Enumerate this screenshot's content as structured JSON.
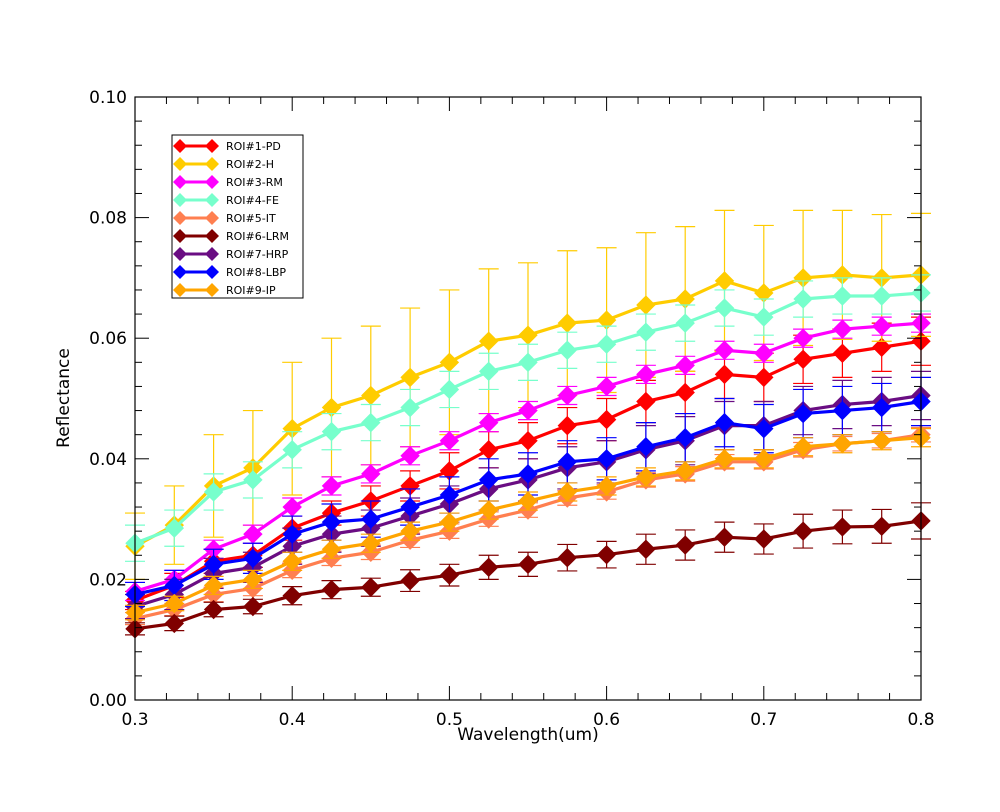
{
  "chart_data": {
    "type": "line",
    "title": "",
    "xlabel": "Wavelength(um)",
    "ylabel": "Reflectance",
    "xlim": [
      0.3,
      0.8
    ],
    "ylim": [
      0.0,
      0.1
    ],
    "x_ticks": [
      "0.3",
      "0.4",
      "0.5",
      "0.6",
      "0.7",
      "0.8"
    ],
    "y_ticks": [
      "0.00",
      "0.02",
      "0.04",
      "0.06",
      "0.08",
      "0.10"
    ],
    "grid": false,
    "legend_position": "top-left",
    "x": [
      0.3,
      0.325,
      0.35,
      0.375,
      0.4,
      0.425,
      0.45,
      0.475,
      0.5,
      0.525,
      0.55,
      0.575,
      0.6,
      0.625,
      0.65,
      0.675,
      0.7,
      0.725,
      0.75,
      0.775,
      0.8
    ],
    "series": [
      {
        "name": "ROI#1-PD",
        "color": "#ff0000",
        "values": [
          0.0165,
          0.019,
          0.023,
          0.024,
          0.0285,
          0.031,
          0.033,
          0.0355,
          0.038,
          0.0415,
          0.043,
          0.0455,
          0.0465,
          0.0495,
          0.051,
          0.054,
          0.0535,
          0.0565,
          0.0575,
          0.0585,
          0.0595
        ],
        "errors": [
          0.0015,
          0.002,
          0.002,
          0.002,
          0.002,
          0.002,
          0.0025,
          0.0025,
          0.003,
          0.003,
          0.003,
          0.003,
          0.0035,
          0.0035,
          0.0035,
          0.004,
          0.004,
          0.004,
          0.004,
          0.004,
          0.004
        ]
      },
      {
        "name": "ROI#2-H",
        "color": "#ffcc00",
        "values": [
          0.0255,
          0.029,
          0.0355,
          0.0385,
          0.045,
          0.0485,
          0.0505,
          0.0535,
          0.056,
          0.0595,
          0.0605,
          0.0625,
          0.063,
          0.0655,
          0.0665,
          0.0695,
          0.0675,
          0.07,
          0.0705,
          0.07,
          0.0705
        ],
        "errors": [
          0.0055,
          0.0065,
          0.0085,
          0.0095,
          0.011,
          0.0115,
          0.0115,
          0.0115,
          0.012,
          0.012,
          0.012,
          0.012,
          0.012,
          0.012,
          0.012,
          0.0117,
          0.0112,
          0.0112,
          0.0107,
          0.0105,
          0.0102
        ]
      },
      {
        "name": "ROI#3-RM",
        "color": "#ff00ff",
        "values": [
          0.018,
          0.02,
          0.025,
          0.0275,
          0.032,
          0.0355,
          0.0375,
          0.0405,
          0.043,
          0.046,
          0.048,
          0.0505,
          0.052,
          0.054,
          0.0555,
          0.058,
          0.0575,
          0.06,
          0.0615,
          0.062,
          0.0625
        ],
        "errors": [
          0.0015,
          0.0015,
          0.0015,
          0.0015,
          0.0015,
          0.0015,
          0.0015,
          0.0015,
          0.0015,
          0.0015,
          0.0015,
          0.0015,
          0.0015,
          0.0015,
          0.0015,
          0.0015,
          0.0015,
          0.0015,
          0.0015,
          0.0015,
          0.0015
        ]
      },
      {
        "name": "ROI#4-FE",
        "color": "#77ffcc",
        "values": [
          0.026,
          0.0285,
          0.0345,
          0.0365,
          0.0415,
          0.0445,
          0.046,
          0.0485,
          0.0515,
          0.0545,
          0.056,
          0.058,
          0.059,
          0.061,
          0.0625,
          0.065,
          0.0635,
          0.0665,
          0.067,
          0.067,
          0.0675
        ],
        "errors": [
          0.003,
          0.003,
          0.003,
          0.003,
          0.003,
          0.003,
          0.003,
          0.003,
          0.003,
          0.003,
          0.003,
          0.003,
          0.003,
          0.003,
          0.003,
          0.003,
          0.003,
          0.003,
          0.003,
          0.003,
          0.003
        ]
      },
      {
        "name": "ROI#5-IT",
        "color": "#ff7f50",
        "values": [
          0.0135,
          0.015,
          0.0175,
          0.0185,
          0.0215,
          0.0235,
          0.0245,
          0.0265,
          0.028,
          0.03,
          0.0315,
          0.0335,
          0.0345,
          0.0365,
          0.0375,
          0.0395,
          0.0395,
          0.0415,
          0.0425,
          0.043,
          0.044
        ],
        "errors": [
          0.001,
          0.001,
          0.0012,
          0.0012,
          0.0012,
          0.0012,
          0.0012,
          0.0012,
          0.0012,
          0.0012,
          0.0012,
          0.0012,
          0.0012,
          0.0012,
          0.0012,
          0.0012,
          0.0012,
          0.0012,
          0.0012,
          0.0012,
          0.0012
        ]
      },
      {
        "name": "ROI#6-LRM",
        "color": "#800000",
        "values": [
          0.0118,
          0.0127,
          0.015,
          0.0155,
          0.0173,
          0.0183,
          0.0187,
          0.0198,
          0.0207,
          0.022,
          0.0225,
          0.0236,
          0.0241,
          0.025,
          0.0257,
          0.027,
          0.0267,
          0.028,
          0.0287,
          0.0288,
          0.0297
        ],
        "errors": [
          0.001,
          0.0012,
          0.0012,
          0.0012,
          0.0015,
          0.0015,
          0.0015,
          0.0018,
          0.0018,
          0.002,
          0.002,
          0.0022,
          0.0022,
          0.0025,
          0.0025,
          0.0025,
          0.0025,
          0.0028,
          0.0028,
          0.0028,
          0.003
        ]
      },
      {
        "name": "ROI#7-HRP",
        "color": "#6a0d83",
        "values": [
          0.0155,
          0.0175,
          0.021,
          0.022,
          0.0255,
          0.0275,
          0.0285,
          0.0305,
          0.0325,
          0.035,
          0.0365,
          0.0385,
          0.0395,
          0.0415,
          0.043,
          0.0455,
          0.0455,
          0.048,
          0.049,
          0.0495,
          0.0505
        ],
        "errors": [
          0.002,
          0.0025,
          0.0025,
          0.0025,
          0.003,
          0.003,
          0.003,
          0.003,
          0.003,
          0.0035,
          0.0035,
          0.0035,
          0.0035,
          0.004,
          0.004,
          0.004,
          0.004,
          0.004,
          0.004,
          0.004,
          0.004
        ]
      },
      {
        "name": "ROI#8-LBP",
        "color": "#0000ff",
        "values": [
          0.0175,
          0.019,
          0.0225,
          0.0235,
          0.0275,
          0.0295,
          0.03,
          0.032,
          0.034,
          0.0365,
          0.0375,
          0.0395,
          0.04,
          0.042,
          0.0435,
          0.046,
          0.045,
          0.0475,
          0.048,
          0.0485,
          0.0495
        ],
        "errors": [
          0.002,
          0.0025,
          0.0025,
          0.0025,
          0.003,
          0.003,
          0.003,
          0.003,
          0.003,
          0.0035,
          0.0035,
          0.0035,
          0.0035,
          0.004,
          0.004,
          0.004,
          0.004,
          0.004,
          0.004,
          0.004,
          0.004
        ]
      },
      {
        "name": "ROI#9-IP",
        "color": "#ffa500",
        "values": [
          0.0145,
          0.016,
          0.019,
          0.02,
          0.023,
          0.025,
          0.026,
          0.028,
          0.0295,
          0.0315,
          0.033,
          0.0345,
          0.0355,
          0.037,
          0.038,
          0.04,
          0.04,
          0.042,
          0.0425,
          0.043,
          0.0435
        ],
        "errors": [
          0.0012,
          0.0012,
          0.0015,
          0.0015,
          0.0015,
          0.0015,
          0.0015,
          0.0015,
          0.0015,
          0.0015,
          0.0015,
          0.0015,
          0.0015,
          0.0015,
          0.0015,
          0.0015,
          0.0015,
          0.0015,
          0.0015,
          0.0015,
          0.0015
        ]
      }
    ]
  }
}
